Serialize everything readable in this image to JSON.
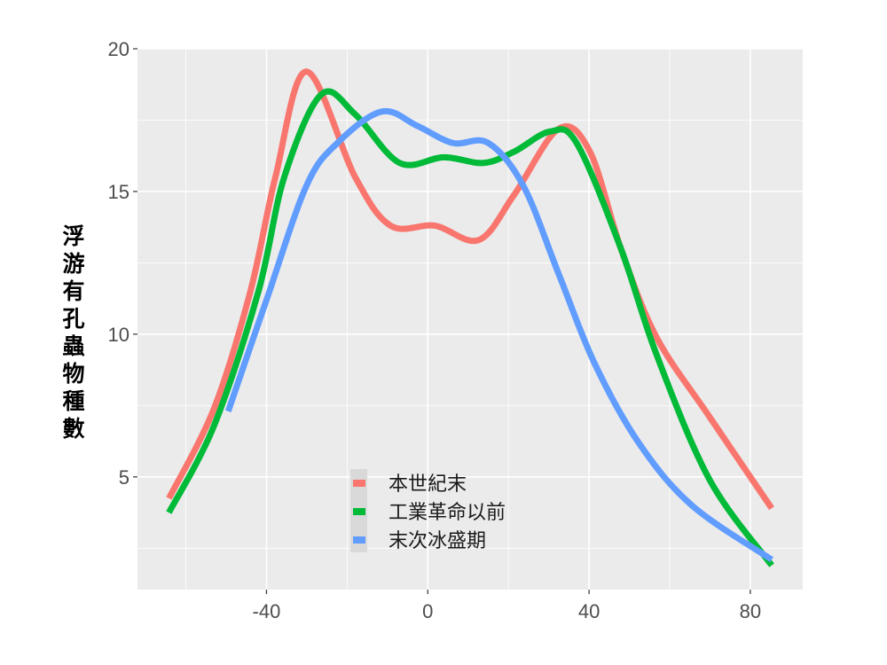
{
  "chart_data": {
    "type": "line",
    "title": "",
    "xlabel": "",
    "ylabel": "浮游有孔蟲物種數",
    "xlim": [
      -72,
      93
    ],
    "ylim": [
      1.05,
      20
    ],
    "x_ticks": [
      -40,
      0,
      40,
      80
    ],
    "x_tick_labels": [
      "-40",
      "0",
      "40",
      "80"
    ],
    "y_ticks": [
      5,
      10,
      15,
      20
    ],
    "y_tick_labels": [
      "5",
      "10",
      "15",
      "20"
    ],
    "grid": true,
    "legend_position": "bottom-center-inside",
    "series": [
      {
        "name": "本世紀末",
        "color": "#F8766D",
        "x": [
          -64.2,
          -53,
          -44,
          -37.8,
          -30.1,
          -18,
          -9.2,
          1.8,
          12.7,
          21.5,
          32.5,
          40.2,
          47.9,
          56.7,
          69.9,
          85.3
        ],
        "y": [
          4.25,
          7.4,
          11.5,
          15.5,
          19.2,
          15.5,
          13.8,
          13.8,
          13.3,
          14.9,
          17.2,
          16.4,
          13.0,
          9.9,
          7.1,
          3.9
        ]
      },
      {
        "name": "工業革命以前",
        "color": "#00BA38",
        "x": [
          -64.2,
          -53,
          -42,
          -35.6,
          -26.4,
          -18,
          -7,
          4,
          13.8,
          21.5,
          30.3,
          36.9,
          47.9,
          56.7,
          69.9,
          85.3
        ],
        "y": [
          3.75,
          6.8,
          11.5,
          15.5,
          18.4,
          17.7,
          16.0,
          16.2,
          16.0,
          16.4,
          17.1,
          16.7,
          13.0,
          9.3,
          4.9,
          1.9
        ]
      },
      {
        "name": "末次冰盛期",
        "color": "#619CFF",
        "x": [
          -49.5,
          -40,
          -30.1,
          -22.4,
          -11.4,
          -2.6,
          6.2,
          15,
          23.7,
          32.5,
          41.3,
          52.3,
          65.5,
          85.3
        ],
        "y": [
          7.3,
          11.2,
          15.2,
          16.7,
          17.8,
          17.3,
          16.7,
          16.7,
          15.2,
          12.1,
          9.0,
          6.2,
          4.0,
          2.1
        ]
      }
    ]
  }
}
